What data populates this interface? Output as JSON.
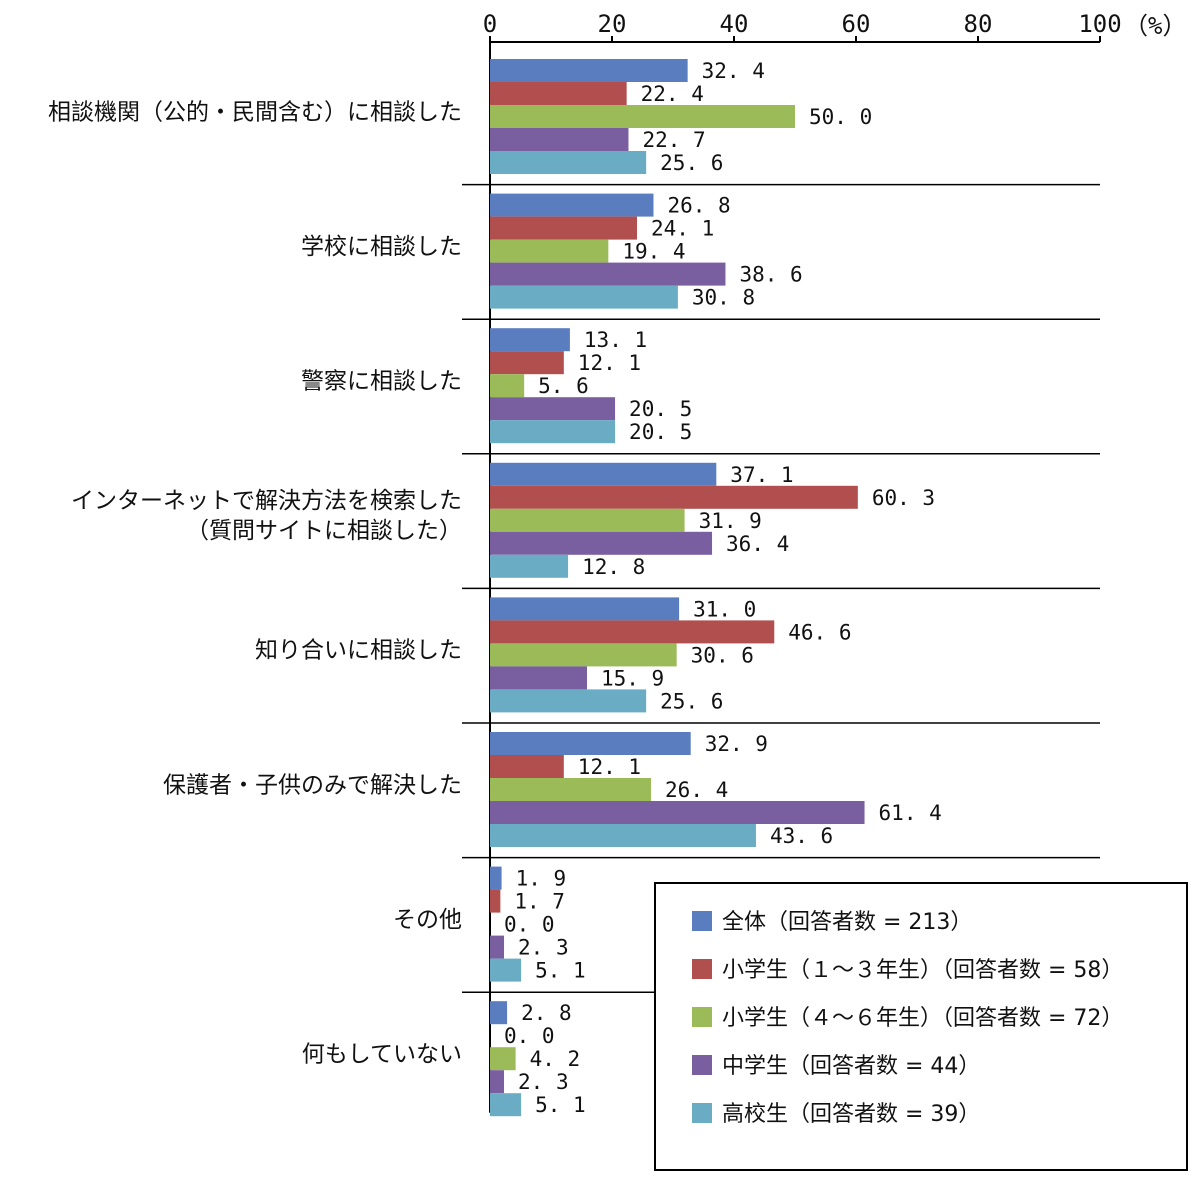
{
  "chart_data": {
    "type": "bar",
    "orientation": "horizontal",
    "unit_label": "（%）",
    "xlim": [
      0,
      100
    ],
    "xticks": [
      0,
      20,
      40,
      60,
      80,
      100
    ],
    "categories": [
      [
        "相談機関（公的・民間含む）に相談した"
      ],
      [
        "学校に相談した"
      ],
      [
        "警察に相談した"
      ],
      [
        "インターネットで解決方法を検索した",
        "（質問サイトに相談した）"
      ],
      [
        "知り合いに相談した"
      ],
      [
        "保護者・子供のみで解決した"
      ],
      [
        "その他"
      ],
      [
        "何もしていない"
      ]
    ],
    "series": [
      {
        "name": "全体（回答者数 = 213）",
        "color": "#5a7dbf",
        "values": [
          32.4,
          26.8,
          13.1,
          37.1,
          31.0,
          32.9,
          1.9,
          2.8
        ]
      },
      {
        "name": "小学生（１～３年生）（回答者数 = 58）",
        "color": "#b04f4d",
        "values": [
          22.4,
          24.1,
          12.1,
          60.3,
          46.6,
          12.1,
          1.7,
          0.0
        ]
      },
      {
        "name": "小学生（４～６年生）（回答者数 = 72）",
        "color": "#9bbb59",
        "values": [
          50.0,
          19.4,
          5.6,
          31.9,
          30.6,
          26.4,
          0.0,
          4.2
        ]
      },
      {
        "name": "中学生（回答者数 = 44）",
        "color": "#7a5fa0",
        "values": [
          22.7,
          38.6,
          20.5,
          36.4,
          15.9,
          61.4,
          2.3,
          2.3
        ]
      },
      {
        "name": "高校生（回答者数 = 39）",
        "color": "#6aacc4",
        "values": [
          25.6,
          30.8,
          20.5,
          12.8,
          25.6,
          43.6,
          5.1,
          5.1
        ]
      }
    ],
    "legend_position": "bottom-right",
    "grid": false
  }
}
